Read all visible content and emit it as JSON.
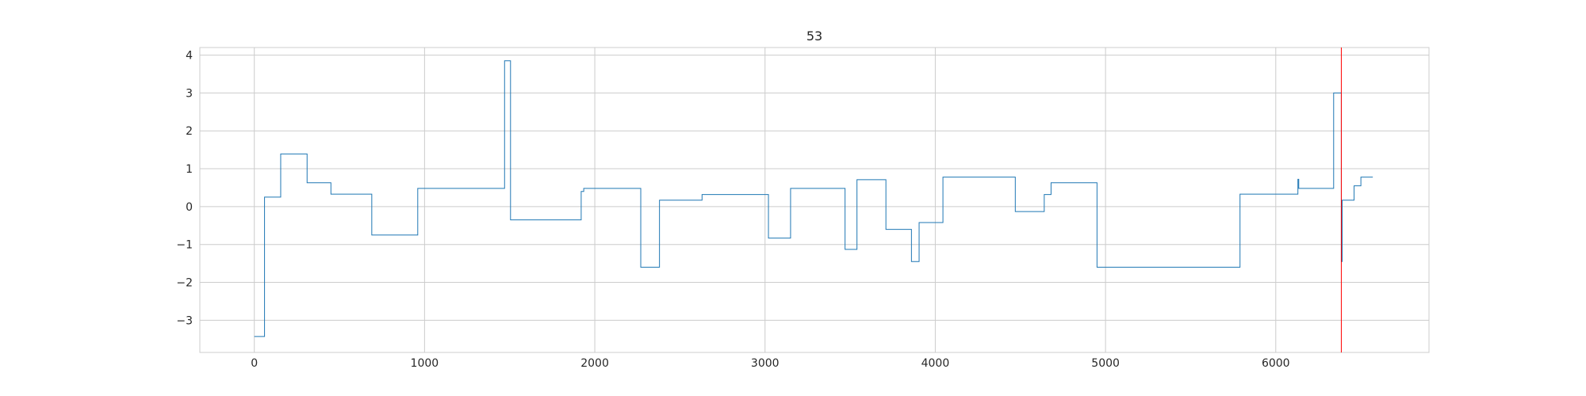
{
  "chart_data": {
    "type": "line",
    "title": "53",
    "xlabel": "",
    "ylabel": "",
    "xlim": [
      -320,
      6900
    ],
    "ylim": [
      -3.85,
      4.2
    ],
    "x_ticks": [
      0,
      1000,
      2000,
      3000,
      4000,
      5000,
      6000
    ],
    "x_tick_labels": [
      "0",
      "1000",
      "2000",
      "3000",
      "4000",
      "5000",
      "6000"
    ],
    "y_ticks": [
      -3,
      -2,
      -1,
      0,
      1,
      2,
      3,
      4
    ],
    "y_tick_labels": [
      "−3",
      "−2",
      "−1",
      "0",
      "1",
      "2",
      "3",
      "4"
    ],
    "grid": true,
    "legend": "none",
    "colors": {
      "series": "#1f77b4",
      "marker": "#ff0000",
      "grid": "#cccccc",
      "frame": "#cccccc",
      "text": "#262626"
    },
    "series": [
      {
        "style": "step-post",
        "points": [
          [
            0,
            -3.43
          ],
          [
            60,
            0.25
          ],
          [
            155,
            1.39
          ],
          [
            310,
            0.63
          ],
          [
            450,
            0.33
          ],
          [
            690,
            -0.75
          ],
          [
            960,
            0.48
          ],
          [
            1470,
            3.85
          ],
          [
            1505,
            -0.35
          ],
          [
            1920,
            0.4
          ],
          [
            1935,
            0.48
          ],
          [
            2270,
            -1.6
          ],
          [
            2380,
            0.17
          ],
          [
            2630,
            0.32
          ],
          [
            3020,
            -0.83
          ],
          [
            3150,
            0.48
          ],
          [
            3470,
            -1.13
          ],
          [
            3540,
            0.71
          ],
          [
            3710,
            -0.6
          ],
          [
            3860,
            -1.45
          ],
          [
            3905,
            -0.42
          ],
          [
            4045,
            0.78
          ],
          [
            4470,
            -0.13
          ],
          [
            4640,
            0.32
          ],
          [
            4680,
            0.63
          ],
          [
            4950,
            -1.6
          ],
          [
            5790,
            0.33
          ],
          [
            6130,
            0.72
          ],
          [
            6135,
            0.48
          ],
          [
            6340,
            3.0
          ],
          [
            6385,
            -1.45
          ],
          [
            6390,
            0.17
          ],
          [
            6460,
            0.55
          ],
          [
            6500,
            0.78
          ],
          [
            6570,
            0.78
          ]
        ]
      }
    ],
    "vertical_line": {
      "x": 6385
    }
  }
}
